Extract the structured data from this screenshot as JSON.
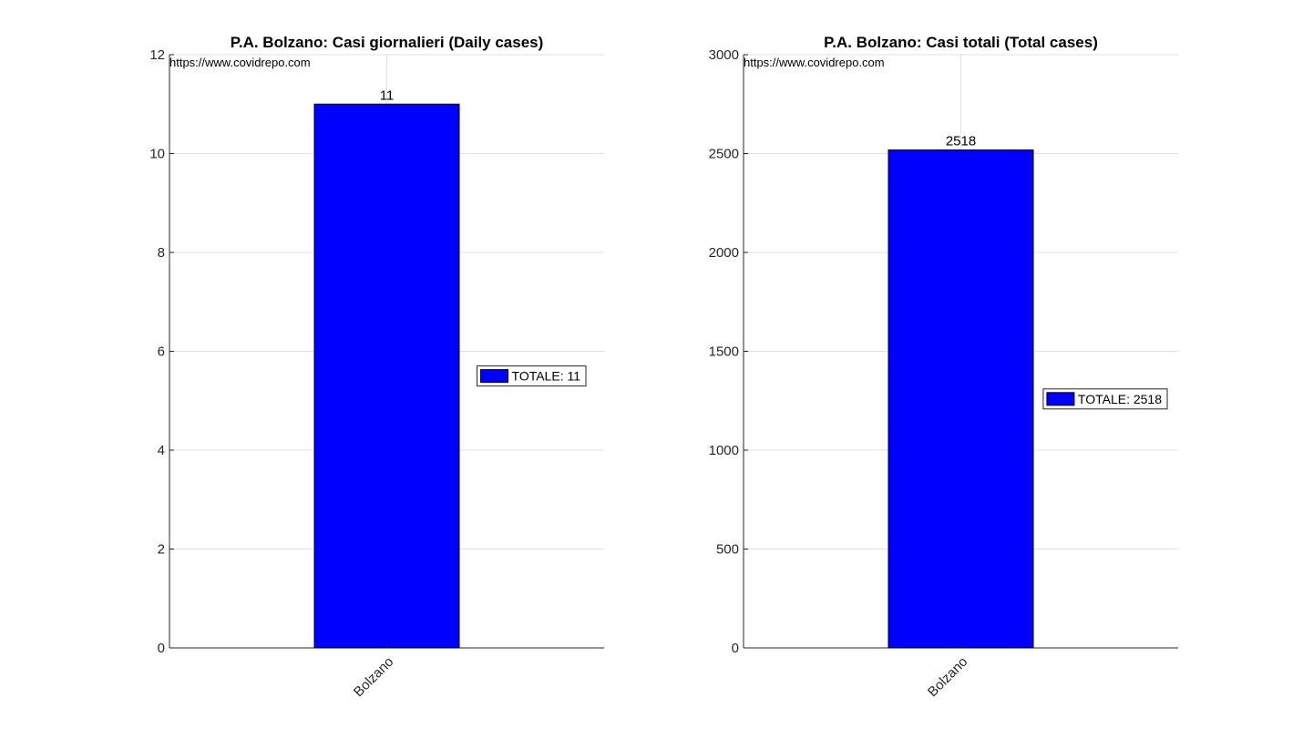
{
  "charts": [
    {
      "source_url": "https://www.covidrepo.com",
      "chart_data": {
        "type": "bar",
        "title": "P.A. Bolzano: Casi giornalieri (Daily cases)",
        "categories": [
          "Bolzano"
        ],
        "values": [
          11
        ],
        "data_labels": [
          "11"
        ],
        "ylim": [
          0,
          12
        ],
        "yticks": [
          0,
          2,
          4,
          6,
          8,
          10,
          12
        ],
        "xlabel": "",
        "ylabel": "",
        "grid": true,
        "legend": {
          "placement": "right",
          "entries": [
            "TOTALE: 11"
          ]
        },
        "bar_color": "#0000ff"
      }
    },
    {
      "source_url": "https://www.covidrepo.com",
      "chart_data": {
        "type": "bar",
        "title": "P.A. Bolzano: Casi totali (Total cases)",
        "categories": [
          "Bolzano"
        ],
        "values": [
          2518
        ],
        "data_labels": [
          "2518"
        ],
        "ylim": [
          0,
          3000
        ],
        "yticks": [
          0,
          500,
          1000,
          1500,
          2000,
          2500,
          3000
        ],
        "xlabel": "",
        "ylabel": "",
        "grid": true,
        "legend": {
          "placement": "right",
          "entries": [
            "TOTALE: 2518"
          ]
        },
        "bar_color": "#0000ff"
      }
    }
  ]
}
